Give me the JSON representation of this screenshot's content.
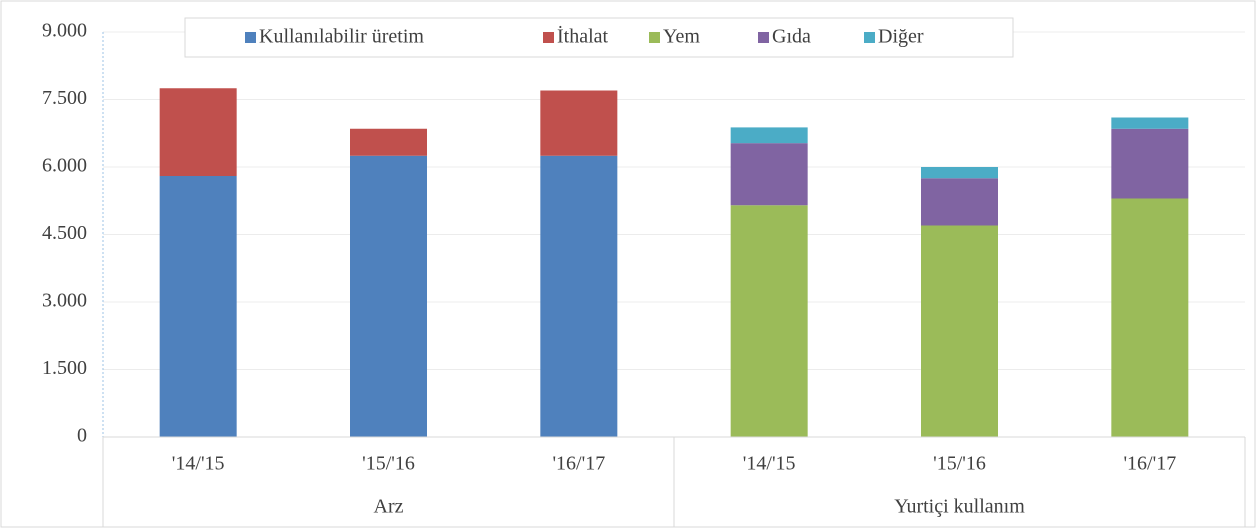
{
  "chart_data": {
    "type": "stacked-bar",
    "categories": [
      "'14/'15",
      "'15/'16",
      "'16/'17",
      "'14/'15",
      "'15/'16",
      "'16/'17"
    ],
    "groups": [
      {
        "label": "Arz",
        "size": 3
      },
      {
        "label": "Yurtiçi kullanım",
        "size": 3
      }
    ],
    "series": [
      {
        "name": "Kullanılabilir üretim",
        "color": "#4f81bd",
        "values": [
          5800,
          6250,
          6250,
          null,
          null,
          null
        ]
      },
      {
        "name": "İthalat",
        "color": "#c0504d",
        "values": [
          1950,
          600,
          1450,
          null,
          null,
          null
        ]
      },
      {
        "name": "Yem",
        "color": "#9bbb59",
        "values": [
          null,
          null,
          null,
          5150,
          4700,
          5300
        ]
      },
      {
        "name": "Gıda",
        "color": "#8064a2",
        "values": [
          null,
          null,
          null,
          1380,
          1050,
          1550
        ]
      },
      {
        "name": "Diğer",
        "color": "#4bacc6",
        "values": [
          null,
          null,
          null,
          350,
          250,
          250
        ]
      }
    ],
    "ylim": [
      0,
      9000
    ],
    "yticks": [
      0,
      {
        "value": 1500,
        "label": "1.500"
      },
      {
        "value": 3000,
        "label": "3.000"
      },
      {
        "value": 4500,
        "label": "4.500"
      },
      {
        "value": 6000,
        "label": "6.000"
      },
      {
        "value": 7500,
        "label": "7.500"
      },
      {
        "value": 9000,
        "label": "9.000"
      }
    ],
    "grid": true
  }
}
